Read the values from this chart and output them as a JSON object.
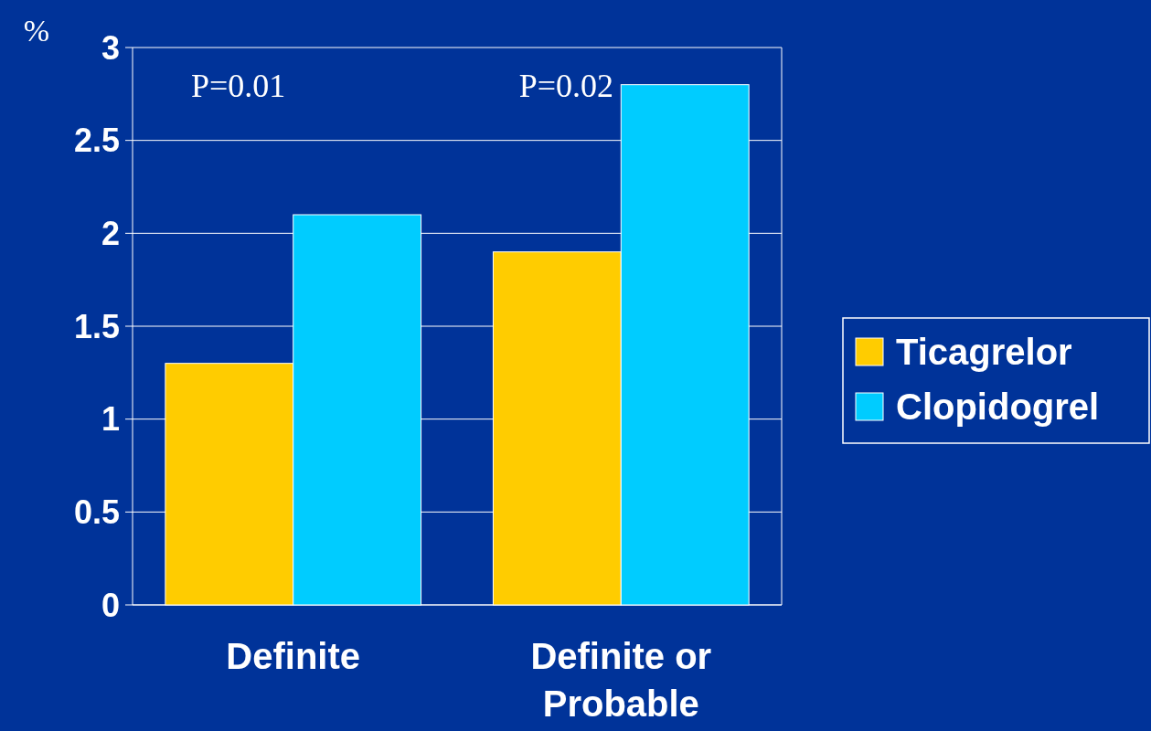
{
  "chart_data": {
    "type": "bar",
    "ylabel": "%",
    "categories": [
      "Definite",
      "Definite or Probable"
    ],
    "series": [
      {
        "name": "Ticagrelor",
        "color": "#ffcc00",
        "values": [
          1.3,
          1.9
        ]
      },
      {
        "name": "Clopidogrel",
        "color": "#00ccff",
        "values": [
          2.1,
          2.8
        ]
      }
    ],
    "ylim": [
      0,
      3
    ],
    "yticks": [
      0,
      0.5,
      1,
      1.5,
      2,
      2.5,
      3
    ],
    "grid": "y",
    "legend": "right",
    "annotations": [
      "P=0.01",
      "P=0.02"
    ]
  }
}
